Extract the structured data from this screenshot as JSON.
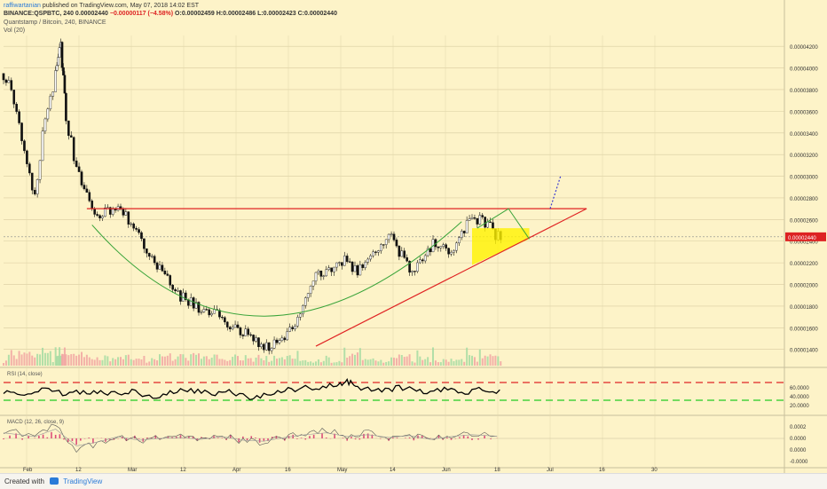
{
  "header": {
    "author": "raffiwartanian",
    "published": "published on TradingView.com, May 07, 2018 14:02 EST",
    "ticker_line": "BINANCE:QSPBTC, 240",
    "last": "0.00002440",
    "change": "−0.00000117 (−4.58%)",
    "ohlc": "O:0.00002459 H:0.00002486 L:0.00002423 C:0.00002440",
    "symbol_desc": "Quantstamp / Bitcoin, 240, BINANCE",
    "volume_label": "Vol (20)"
  },
  "footer": {
    "created_with": "Created with",
    "brand": "TradingView"
  },
  "colors": {
    "background": "#fdf3c8",
    "candles": "#111111",
    "trendline": "#e02424",
    "arc": "#3aa43a",
    "projection": "#3b3bd0",
    "triangle_fill": "#fff200",
    "rsi_upper": "#e02424",
    "rsi_lower": "#22cc22",
    "macd_hist": "#d6336c"
  },
  "chart_data": [
    {
      "type": "candlestick",
      "title": "Quantstamp / Bitcoin, 240, BINANCE",
      "y_ticks": [
        "0.00004200",
        "0.00004000",
        "0.00003800",
        "0.00003600",
        "0.00003400",
        "0.00003200",
        "0.00003000",
        "0.00002800",
        "0.00002600",
        "0.00002400",
        "0.00002200",
        "0.00002000",
        "0.00001800",
        "0.00001600",
        "0.00001400"
      ],
      "x_ticks": [
        "Feb",
        "12",
        "Mar",
        "12",
        "Apr",
        "16",
        "May",
        "14",
        "Jun",
        "18",
        "Jul",
        "16",
        "30"
      ],
      "last_price": 2.44e-05,
      "series": [
        {
          "x": [
            0,
            2,
            4,
            6,
            8,
            10,
            11,
            12,
            14,
            16,
            18,
            20,
            22,
            24,
            26,
            28,
            30,
            32,
            34,
            36,
            38,
            40,
            42,
            44,
            46,
            48,
            50,
            52,
            54,
            56,
            58,
            60,
            62,
            64,
            66,
            68,
            70,
            72,
            74,
            76,
            78,
            80,
            82,
            84,
            86,
            88,
            90,
            92,
            94,
            96
          ],
          "y": [
            3.95e-05,
            3.72e-05,
            3.25e-05,
            2.82e-05,
            3.55e-05,
            3.92e-05,
            4.2e-05,
            3.55e-05,
            3.05e-05,
            2.8e-05,
            2.62e-05,
            2.68e-05,
            2.7e-05,
            2.6e-05,
            2.48e-05,
            2.3e-05,
            2.12e-05,
            2.02e-05,
            1.88e-05,
            1.82e-05,
            1.75e-05,
            1.72e-05,
            1.7e-05,
            1.58e-05,
            1.55e-05,
            1.52e-05,
            1.42e-05,
            1.45e-05,
            1.5e-05,
            1.62e-05,
            1.9e-05,
            2.15e-05,
            2.1e-05,
            2.25e-05,
            2.2e-05,
            2.1e-05,
            2.25e-05,
            2.35e-05,
            2.5e-05,
            2.3e-05,
            2.15e-05,
            2.2e-05,
            2.35e-05,
            2.4e-05,
            2.3e-05,
            2.5e-05,
            2.58e-05,
            2.62e-05,
            2.48e-05,
            2.44e-05
          ]
        }
      ],
      "annotations": {
        "resistance": {
          "from": [
            16,
            2.7e-05
          ],
          "to": [
            112,
            2.7e-05
          ]
        },
        "support": {
          "from": [
            60,
            1.43e-05
          ],
          "to": [
            112,
            2.7e-05
          ]
        },
        "projection": {
          "from": [
            105,
            2.7e-05
          ],
          "to": [
            107,
            3e-05
          ]
        }
      }
    },
    {
      "type": "line",
      "title": "RSI (14, close)",
      "y_ticks": [
        "60.0000",
        "40.0000",
        "20.0000"
      ],
      "levels": [
        70,
        30
      ],
      "series": [
        {
          "x": [
            0,
            4,
            8,
            12,
            16,
            20,
            24,
            28,
            32,
            36,
            40,
            44,
            48,
            52,
            56,
            60,
            64,
            66,
            68,
            72,
            76,
            80,
            84,
            88,
            92,
            96
          ],
          "y": [
            52,
            48,
            55,
            42,
            50,
            45,
            51,
            38,
            47,
            52,
            44,
            49,
            35,
            48,
            55,
            58,
            68,
            72,
            60,
            52,
            57,
            50,
            55,
            48,
            54,
            50
          ]
        }
      ]
    },
    {
      "type": "line",
      "title": "MACD (12, 26, close, 9)",
      "y_ticks": [
        "0.0002",
        "0.0000",
        "0.0000",
        "-0.0000"
      ],
      "series": [
        {
          "x": [
            0,
            6,
            10,
            14,
            18,
            22,
            26,
            30,
            34,
            38,
            42,
            46,
            50,
            54,
            58,
            62,
            66,
            70,
            74,
            78,
            82,
            86,
            90,
            96
          ],
          "y": [
            0.3,
            0.1,
            0.5,
            -0.4,
            -0.2,
            0.1,
            -0.1,
            0,
            0.05,
            -0.05,
            0.1,
            -0.1,
            -0.15,
            0.05,
            0.2,
            0.3,
            0.1,
            0.2,
            0.05,
            0.15,
            -0.05,
            0.1,
            0.2,
            0.1
          ]
        }
      ]
    }
  ]
}
